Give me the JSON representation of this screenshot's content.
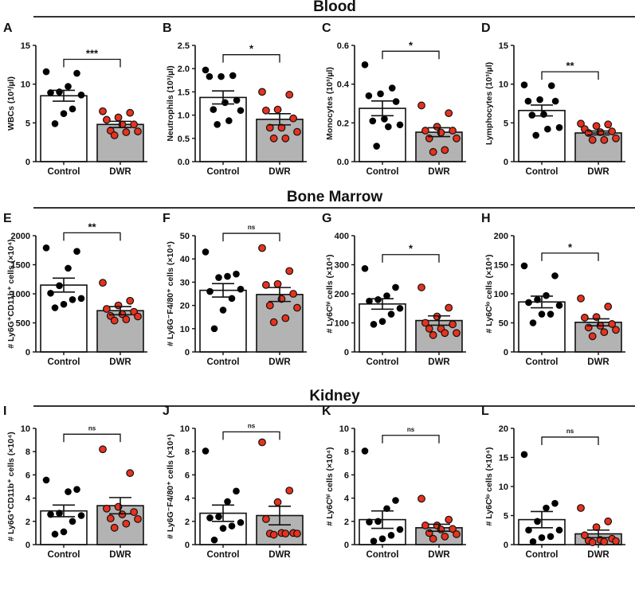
{
  "sections": [
    "Blood",
    "Bone Marrow",
    "Kidney"
  ],
  "colors": {
    "control_fill": "#ffffff",
    "dwr_fill": "#b3b3b3",
    "control_point": "#000000",
    "dwr_point": "#e8321e"
  },
  "chart_data": [
    {
      "type": "bar",
      "letter": "A",
      "ylabel": "WBCs (10³/µl)",
      "ylim": [
        0,
        15
      ],
      "ticks": [
        "0",
        "5",
        "10",
        "15"
      ],
      "tick_values": [
        0,
        5,
        10,
        15
      ],
      "categories": [
        "Control",
        "DWR"
      ],
      "means": [
        8.5,
        4.8
      ],
      "sem": [
        0.7,
        0.4
      ],
      "significance": "***",
      "bracket_y": 13.2,
      "points": [
        [
          11.6,
          11.4,
          9.7,
          9.0,
          8.9,
          8.6,
          6.8,
          6.2,
          4.9
        ],
        [
          6.5,
          6.3,
          5.7,
          5.4,
          4.8,
          4.8,
          4.0,
          3.9,
          3.8,
          3.4
        ]
      ]
    },
    {
      "type": "bar",
      "letter": "B",
      "ylabel": "Neutrophils (10³/µl)",
      "ylim": [
        0,
        2.5
      ],
      "ticks": [
        "0.0",
        "0.5",
        "1.0",
        "1.5",
        "2.0",
        "2.5"
      ],
      "tick_values": [
        0,
        0.5,
        1,
        1.5,
        2,
        2.5
      ],
      "categories": [
        "Control",
        "DWR"
      ],
      "means": [
        1.38,
        0.91
      ],
      "sem": [
        0.14,
        0.12
      ],
      "significance": "*",
      "bracket_y": 2.3,
      "points": [
        [
          1.97,
          1.85,
          1.83,
          1.83,
          1.32,
          1.27,
          1.12,
          1.1,
          0.88,
          0.8
        ],
        [
          1.5,
          1.44,
          1.12,
          1.1,
          0.93,
          0.73,
          0.73,
          0.64,
          0.5,
          0.5
        ]
      ]
    },
    {
      "type": "bar",
      "letter": "C",
      "ylabel": "Monocytes (10³/µl)",
      "ylim": [
        0,
        0.6
      ],
      "ticks": [
        "0.0",
        "0.2",
        "0.4",
        "0.6"
      ],
      "tick_values": [
        0,
        0.2,
        0.4,
        0.6
      ],
      "categories": [
        "Control",
        "DWR"
      ],
      "means": [
        0.275,
        0.152
      ],
      "sem": [
        0.038,
        0.023
      ],
      "significance": "*",
      "bracket_y": 0.57,
      "points": [
        [
          0.5,
          0.38,
          0.35,
          0.34,
          0.31,
          0.22,
          0.21,
          0.19,
          0.18,
          0.08
        ],
        [
          0.29,
          0.25,
          0.18,
          0.16,
          0.16,
          0.15,
          0.12,
          0.12,
          0.06,
          0.05
        ]
      ]
    },
    {
      "type": "bar",
      "letter": "D",
      "ylabel": "Lymphocytes (10³/µl)",
      "ylim": [
        0,
        15
      ],
      "ticks": [
        "0",
        "5",
        "10",
        "15"
      ],
      "tick_values": [
        0,
        5,
        10,
        15
      ],
      "categories": [
        "Control",
        "DWR"
      ],
      "means": [
        6.6,
        3.7
      ],
      "sem": [
        0.7,
        0.25
      ],
      "significance": "**",
      "bracket_y": 11.6,
      "points": [
        [
          9.9,
          9.8,
          8.0,
          7.8,
          7.8,
          6.1,
          6.0,
          4.4,
          4.2,
          3.4
        ],
        [
          4.9,
          4.8,
          4.6,
          4.2,
          3.9,
          3.8,
          3.7,
          3.0,
          2.8,
          2.8
        ]
      ]
    },
    {
      "type": "bar",
      "letter": "E",
      "ylabel": "# Ly6G⁺CD11b⁺ cells (×10⁴)",
      "ylim": [
        0,
        2000
      ],
      "ticks": [
        "0",
        "500",
        "1000",
        "1500",
        "2000"
      ],
      "tick_values": [
        0,
        500,
        1000,
        1500,
        2000
      ],
      "categories": [
        "Control",
        "DWR"
      ],
      "means": [
        1150,
        710
      ],
      "sem": [
        120,
        70
      ],
      "significance": "**",
      "bracket_y": 2050,
      "points": [
        [
          1790,
          1730,
          1440,
          1140,
          1010,
          920,
          900,
          820,
          760
        ],
        [
          1190,
          880,
          800,
          740,
          690,
          650,
          620,
          610,
          560,
          540
        ]
      ]
    },
    {
      "type": "bar",
      "letter": "F",
      "ylabel": "# Ly6G⁻F4/80⁺ cells (×10⁴)",
      "ylim": [
        0,
        50
      ],
      "ticks": [
        "0",
        "10",
        "20",
        "30",
        "40",
        "50"
      ],
      "tick_values": [
        0,
        10,
        20,
        30,
        40,
        50
      ],
      "categories": [
        "Control",
        "DWR"
      ],
      "means": [
        26.5,
        24.7
      ],
      "sem": [
        2.9,
        3.0
      ],
      "significance": "ns",
      "bracket_y": 51,
      "points": [
        [
          43,
          33.5,
          32.5,
          32,
          26,
          27,
          23,
          18,
          10
        ],
        [
          44.7,
          34.8,
          29.2,
          28.8,
          25,
          22.8,
          20,
          19,
          14.5,
          12.8
        ]
      ]
    },
    {
      "type": "bar",
      "letter": "G",
      "ylabel": "# Ly6Cʰⁱ cells (×10⁴)",
      "ylim": [
        0,
        400
      ],
      "ticks": [
        "0",
        "100",
        "200",
        "300",
        "400"
      ],
      "tick_values": [
        0,
        100,
        200,
        300,
        400
      ],
      "categories": [
        "Control",
        "DWR"
      ],
      "means": [
        165,
        108
      ],
      "sem": [
        18,
        16
      ],
      "significance": "*",
      "bracket_y": 335,
      "points": [
        [
          287,
          222,
          193,
          180,
          175,
          150,
          130,
          105,
          95
        ],
        [
          222,
          152,
          122,
          100,
          95,
          80,
          80,
          65,
          65,
          58
        ]
      ]
    },
    {
      "type": "bar",
      "letter": "H",
      "ylabel": "# Ly6Cˡᵒ cells (×10⁴)",
      "ylim": [
        0,
        200
      ],
      "ticks": [
        "0",
        "50",
        "100",
        "150",
        "200"
      ],
      "tick_values": [
        0,
        50,
        100,
        150,
        200
      ],
      "categories": [
        "Control",
        "DWR"
      ],
      "means": [
        86,
        51
      ],
      "sem": [
        10,
        6
      ],
      "significance": "*",
      "bracket_y": 170,
      "points": [
        [
          148,
          131,
          97,
          90,
          85,
          80,
          65,
          65,
          50
        ],
        [
          92,
          78,
          60,
          59,
          48,
          45,
          42,
          38,
          34,
          27
        ]
      ]
    },
    {
      "type": "bar",
      "letter": "I",
      "ylabel": "# Ly6G⁺CD11b⁺ cells (×10⁴)",
      "ylim": [
        0,
        10
      ],
      "ticks": [
        "0",
        "2",
        "4",
        "6",
        "8",
        "10"
      ],
      "tick_values": [
        0,
        2,
        4,
        6,
        8,
        10
      ],
      "categories": [
        "Control",
        "DWR"
      ],
      "means": [
        2.9,
        3.35
      ],
      "sem": [
        0.5,
        0.7
      ],
      "significance": "ns",
      "bracket_y": 9.5,
      "points": [
        [
          5.55,
          4.75,
          4.55,
          2.7,
          2.6,
          2.5,
          2.0,
          1.1,
          0.9
        ],
        [
          8.2,
          6.15,
          3.25,
          3.1,
          2.8,
          2.6,
          2.25,
          2.2,
          1.8,
          1.45
        ]
      ]
    },
    {
      "type": "bar",
      "letter": "J",
      "ylabel": "# Ly6G⁻F4/80⁺ cells (×10⁴)",
      "ylim": [
        0,
        10
      ],
      "ticks": [
        "0",
        "2",
        "4",
        "6",
        "8",
        "10"
      ],
      "tick_values": [
        0,
        2,
        4,
        6,
        8,
        10
      ],
      "categories": [
        "Control",
        "DWR"
      ],
      "means": [
        2.7,
        2.5
      ],
      "sem": [
        0.7,
        0.8
      ],
      "significance": "ns",
      "bracket_y": 9.7,
      "points": [
        [
          8.05,
          4.6,
          3.7,
          2.4,
          2.3,
          1.9,
          1.6,
          1.4,
          0.4
        ],
        [
          8.8,
          4.65,
          3.65,
          2.2,
          1.0,
          1.0,
          0.95,
          0.95,
          0.95,
          0.85
        ]
      ]
    },
    {
      "type": "bar",
      "letter": "K",
      "ylabel": "# Ly6Cʰⁱ cells (×10⁴)",
      "ylim": [
        0,
        10
      ],
      "ticks": [
        "0",
        "2",
        "4",
        "6",
        "8",
        "10"
      ],
      "tick_values": [
        0,
        2,
        4,
        6,
        8,
        10
      ],
      "categories": [
        "Control",
        "DWR"
      ],
      "means": [
        2.15,
        1.45
      ],
      "sem": [
        0.75,
        0.3
      ],
      "significance": "ns",
      "bracket_y": 9.4,
      "points": [
        [
          8.05,
          3.8,
          3.1,
          2.0,
          1.95,
          1.3,
          0.8,
          0.5,
          0.3
        ],
        [
          3.95,
          2.15,
          1.65,
          1.65,
          1.35,
          1.3,
          1.0,
          0.9,
          0.7,
          0.5
        ]
      ]
    },
    {
      "type": "bar",
      "letter": "L",
      "ylabel": "# Ly6Cˡᵒ cells (×10⁴)",
      "ylim": [
        0,
        20
      ],
      "ticks": [
        "0",
        "5",
        "10",
        "15",
        "20"
      ],
      "tick_values": [
        0,
        5,
        10,
        15,
        20
      ],
      "categories": [
        "Control",
        "DWR"
      ],
      "means": [
        4.3,
        1.85
      ],
      "sem": [
        1.4,
        0.65
      ],
      "significance": "ns",
      "bracket_y": 18.5,
      "points": [
        [
          15.5,
          7.1,
          6.3,
          4.0,
          2.5,
          2.5,
          1.4,
          1.2,
          0.5
        ],
        [
          6.3,
          4.0,
          3.0,
          1.6,
          1.0,
          0.8,
          0.7,
          0.6,
          0.5,
          0.4
        ]
      ]
    }
  ]
}
